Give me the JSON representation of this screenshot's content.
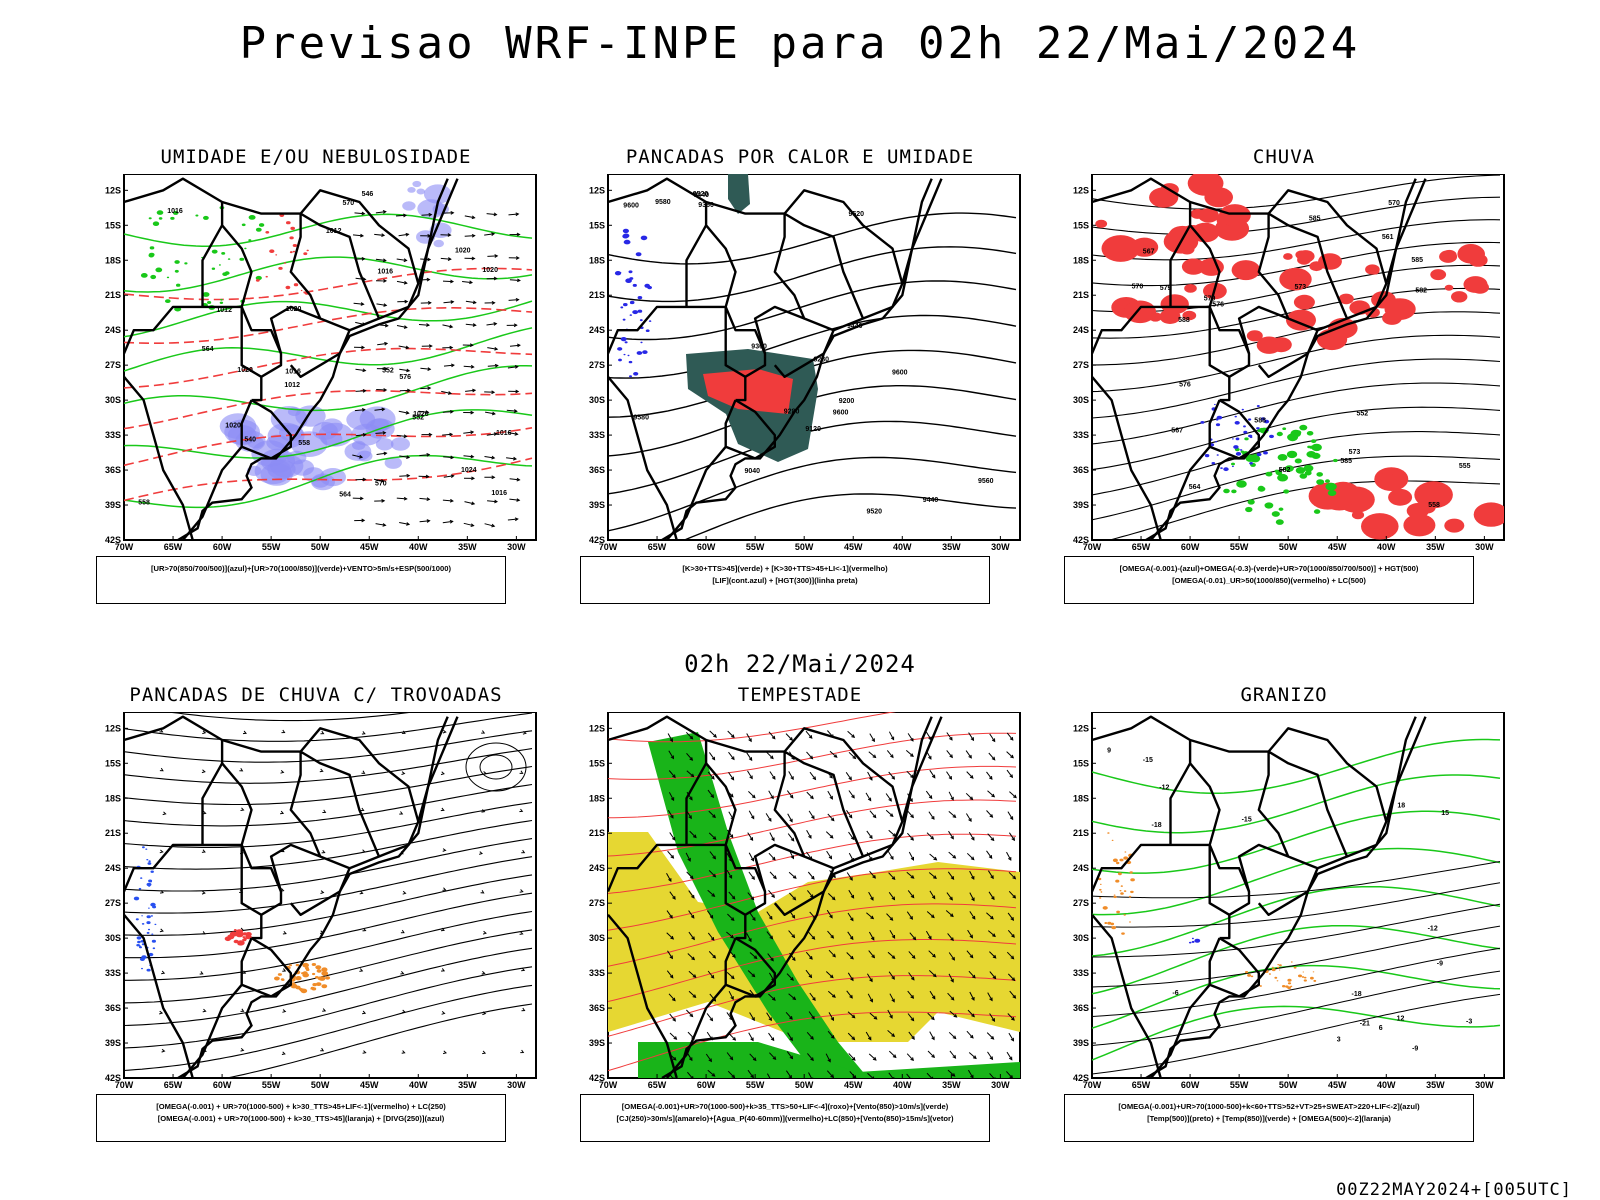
{
  "title": "Previsao WRF-INPE  para 02h 22/Mai/2024",
  "middle_date": "02h 22/Mai/2024",
  "footer": "00Z22MAY2024+[005UTC]",
  "axes": {
    "y_ticks": [
      "12S",
      "15S",
      "18S",
      "21S",
      "24S",
      "27S",
      "30S",
      "33S",
      "36S",
      "39S",
      "42S"
    ],
    "x_ticks": [
      "70W",
      "65W",
      "60W",
      "55W",
      "50W",
      "45W",
      "40W",
      "35W",
      "30W"
    ]
  },
  "panels": [
    {
      "title": "UMIDADE E/OU NEBULOSIDADE",
      "legend": [
        "[UR>70(850/700/500)](azul)+[UR>70(1000/850)](verde)+VENTO>5m/s+ESP(500/1000)"
      ],
      "contour_labels": [
        "1016",
        "1012",
        "1012",
        "1016",
        "1020",
        "1020",
        "1020",
        "1020",
        "1012",
        "1016",
        "1024",
        "1020",
        "1016",
        "1020",
        "1016",
        "576",
        "570",
        "564",
        "558",
        "552",
        "546",
        "540",
        "570",
        "564",
        "558",
        "552"
      ],
      "colors": {
        "blue": "#8c8cf5",
        "green": "#19c819",
        "red": "#f03c3c"
      }
    },
    {
      "title": "PANCADAS POR CALOR E UMIDADE",
      "legend": [
        "[K>30+TTS>45](verde) + [K>30+TTS>45+LI<-1](vermelho)",
        "[LIF](cont.azul) + [HGT(300)](linha preta)"
      ],
      "contour_labels": [
        "9580",
        "9600",
        "9520",
        "9580",
        "9560",
        "9440",
        "9600",
        "9520",
        "9360",
        "9280",
        "9200",
        "9120",
        "9040",
        "9600",
        "9520",
        "9440",
        "9360",
        "9280",
        "9440"
      ],
      "colors": {
        "dark": "#2f5a55",
        "red": "#f03c3c",
        "blue": "#2828e6"
      }
    },
    {
      "title": "CHUVA",
      "legend": [
        "[OMEGA(-0.001)-(azul)+OMEGA(-0.3)-(verde)+UR>70(1000/850/700/500)] + HGT(500)",
        "[OMEGA(-0.01)_UR>50(1000/850)(vermelho) + LC(500)"
      ],
      "contour_labels": [
        "588",
        "585",
        "588",
        "585",
        "582",
        "579",
        "576",
        "573",
        "570",
        "567",
        "564",
        "561",
        "558",
        "555",
        "552",
        "585",
        "582",
        "579",
        "576",
        "573",
        "570",
        "567"
      ],
      "colors": {
        "red": "#f03c3c",
        "green": "#19c819",
        "blue": "#2828e6"
      }
    },
    {
      "title": "PANCADAS DE CHUVA C/ TROVOADAS",
      "legend": [
        "[OMEGA(-0.001) + UR>70(1000-500) + k>30_TTS>45+LIF<-1](vermelho) + LC(250)",
        "[OMEGA(-0.001) + UR>70(1000-500) + k>30_TTS>45](laranja) + [DIVG(250)](azul)"
      ],
      "colors": {
        "red": "#f03c3c",
        "orange": "#f08c28",
        "blue": "#2850f0"
      }
    },
    {
      "title": "TEMPESTADE",
      "legend": [
        "[OMEGA(-0.001)+UR>70(1000-500)+k>35_TTS>50+LIF<-4](roxo)+[Vento(850)>10m/s](verde)",
        "[CJ(250)>30m/s](amarelo)+[Agua_P(40-60mm)](vermelho)+LC(850)+[Vento(850)>15m/s](vetor)"
      ],
      "colors": {
        "yellow": "#e6d732",
        "green": "#19b419",
        "red": "#f03c3c"
      }
    },
    {
      "title": "GRANIZO",
      "legend": [
        "[OMEGA(-0.001)+UR>70(1000-500)+k<60+TTS>52+VT>25+SWEAT>220+LIF<-2](azul)",
        "[Temp(500)](preto) + [Temp(850)](verde) + [OMEGA(500)<-2](laranja)"
      ],
      "contour_labels": [
        "-21",
        "-18",
        "-15",
        "-12",
        "-9",
        "-6",
        "-3",
        "15",
        "18",
        "12",
        "9",
        "6",
        "3",
        "-18",
        "-15",
        "-12",
        "-9"
      ],
      "colors": {
        "green": "#19c819",
        "orange": "#f08c28",
        "blue": "#2828e6"
      }
    }
  ]
}
